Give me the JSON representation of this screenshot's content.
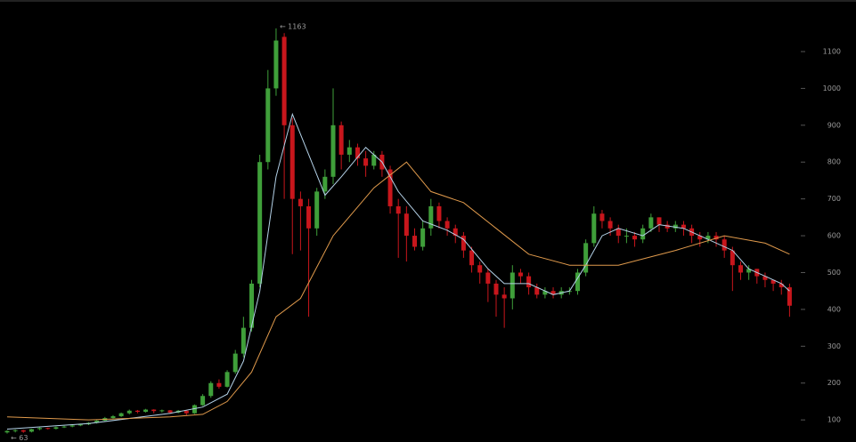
{
  "chart_data": {
    "type": "candlestick",
    "open": [
      66,
      70,
      72,
      68,
      75,
      78,
      76,
      80,
      82,
      85,
      88,
      92,
      98,
      105,
      110,
      118,
      125,
      122,
      128,
      124,
      126,
      120,
      125,
      118,
      140,
      165,
      200,
      190,
      230,
      280,
      350,
      470,
      800,
      1000,
      1140,
      900,
      700,
      680,
      620,
      720,
      760,
      900,
      820,
      840,
      810,
      790,
      820,
      780,
      680,
      660,
      600,
      570,
      620,
      680,
      640,
      620,
      600,
      560,
      520,
      500,
      470,
      440,
      430,
      500,
      490,
      460,
      440,
      450,
      440,
      450,
      450,
      500,
      580,
      660,
      640,
      620,
      600,
      600,
      590,
      620,
      650,
      630,
      620,
      630,
      620,
      600,
      590,
      600,
      590,
      560,
      520,
      500,
      510,
      490,
      480,
      470,
      460
    ],
    "high": [
      72,
      74,
      73,
      76,
      80,
      79,
      82,
      84,
      87,
      90,
      94,
      100,
      108,
      113,
      120,
      128,
      127,
      130,
      129,
      128,
      127,
      127,
      126,
      142,
      170,
      205,
      210,
      235,
      290,
      380,
      480,
      820,
      1050,
      1163,
      1150,
      920,
      720,
      700,
      730,
      780,
      1000,
      910,
      860,
      850,
      830,
      830,
      830,
      790,
      700,
      680,
      620,
      640,
      700,
      690,
      650,
      630,
      610,
      570,
      530,
      510,
      480,
      460,
      520,
      510,
      500,
      470,
      460,
      460,
      460,
      460,
      510,
      590,
      680,
      670,
      650,
      630,
      620,
      610,
      630,
      660,
      650,
      640,
      640,
      640,
      630,
      610,
      610,
      610,
      600,
      570,
      530,
      520,
      510,
      500,
      480,
      480,
      470
    ],
    "low": [
      63,
      66,
      65,
      66,
      72,
      74,
      74,
      78,
      80,
      83,
      86,
      90,
      96,
      103,
      108,
      115,
      118,
      120,
      118,
      120,
      116,
      118,
      112,
      116,
      138,
      160,
      185,
      188,
      225,
      270,
      340,
      460,
      780,
      980,
      700,
      550,
      560,
      380,
      600,
      700,
      740,
      780,
      800,
      790,
      760,
      780,
      760,
      660,
      540,
      530,
      560,
      560,
      600,
      620,
      600,
      580,
      540,
      500,
      470,
      420,
      380,
      350,
      400,
      470,
      440,
      430,
      430,
      430,
      430,
      440,
      440,
      490,
      570,
      620,
      600,
      580,
      580,
      570,
      580,
      610,
      610,
      610,
      610,
      600,
      580,
      570,
      580,
      570,
      540,
      450,
      480,
      480,
      470,
      460,
      450,
      440,
      380
    ],
    "close": [
      70,
      72,
      68,
      75,
      78,
      76,
      80,
      82,
      85,
      88,
      92,
      98,
      105,
      110,
      118,
      125,
      122,
      128,
      124,
      126,
      120,
      125,
      118,
      140,
      165,
      200,
      190,
      230,
      280,
      350,
      470,
      800,
      1000,
      1130,
      900,
      700,
      680,
      620,
      720,
      760,
      900,
      820,
      840,
      810,
      790,
      820,
      780,
      680,
      660,
      600,
      570,
      620,
      680,
      640,
      620,
      600,
      560,
      520,
      500,
      470,
      440,
      430,
      500,
      490,
      460,
      440,
      450,
      440,
      450,
      450,
      500,
      580,
      660,
      640,
      620,
      600,
      600,
      590,
      620,
      650,
      630,
      620,
      630,
      620,
      600,
      590,
      600,
      590,
      560,
      520,
      500,
      510,
      490,
      480,
      470,
      460,
      410
    ],
    "up_color": "#3f9f3a",
    "down_color": "#c8161c",
    "lines": [
      {
        "color": "#b4d2e8",
        "x": [
          0,
          10,
          20,
          24,
          27,
          29,
          31,
          33,
          35,
          37,
          39,
          41,
          44,
          46,
          48,
          51,
          54,
          56,
          59,
          61,
          64,
          67,
          69,
          71,
          73,
          75,
          78,
          80,
          83,
          86,
          89,
          91,
          93,
          95,
          96
        ],
        "values": [
          75,
          90,
          118,
          135,
          170,
          260,
          450,
          760,
          930,
          820,
          710,
          760,
          840,
          800,
          720,
          640,
          615,
          590,
          510,
          470,
          470,
          440,
          450,
          520,
          600,
          620,
          600,
          630,
          620,
          590,
          560,
          510,
          490,
          470,
          450
        ]
      },
      {
        "color": "#e09a4c",
        "x": [
          0,
          10,
          20,
          24,
          27,
          30,
          33,
          36,
          40,
          45,
          49,
          52,
          56,
          60,
          64,
          69,
          75,
          82,
          88,
          93,
          96
        ],
        "values": [
          108,
          100,
          108,
          115,
          150,
          230,
          380,
          430,
          600,
          730,
          800,
          720,
          690,
          620,
          550,
          520,
          520,
          560,
          600,
          580,
          550
        ]
      }
    ],
    "ylim": [
      40,
      1240
    ],
    "yticks": [
      100,
      200,
      300,
      400,
      500,
      600,
      700,
      800,
      900,
      1000,
      1100
    ],
    "annotations": [
      "← 1163",
      "← 63"
    ]
  }
}
